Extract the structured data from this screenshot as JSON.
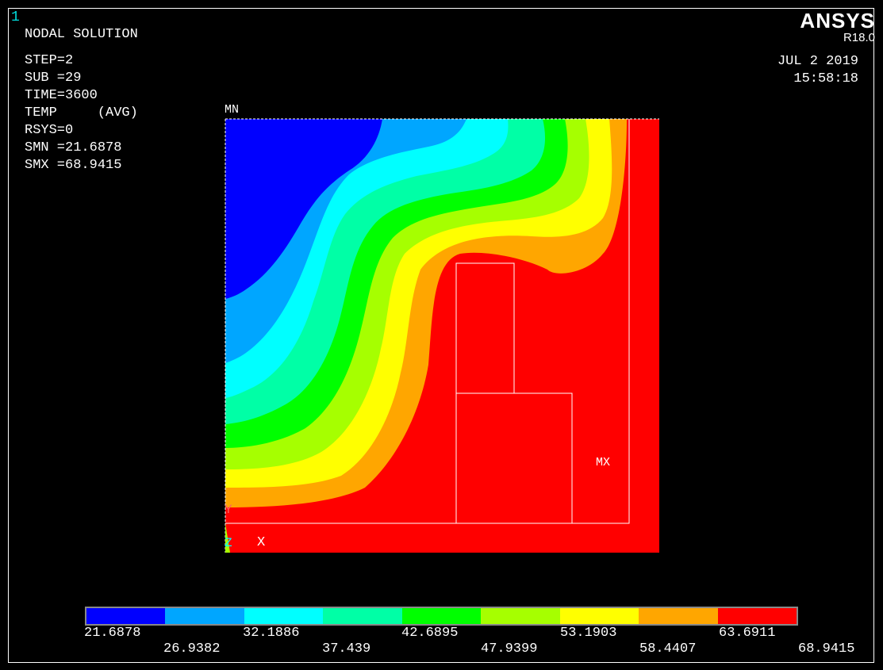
{
  "window_number": "1",
  "brand": {
    "name": "ANSYS",
    "version": "R18.0"
  },
  "solution_info": [
    "NODAL SOLUTION",
    "STEP=2",
    "SUB =29",
    "TIME=3600",
    "TEMP     (AVG)",
    "RSYS=0",
    "SMN =21.6878",
    "SMX =68.9415"
  ],
  "date": "JUL  2 2019",
  "time": "15:58:18",
  "plot_labels": {
    "mn": "MN",
    "mx": "MX",
    "axis_y": "Y",
    "axis_z": "Z",
    "axis_x": "X"
  },
  "legend": {
    "colors": [
      "#0000ff",
      "#00a6ff",
      "#00ffff",
      "#00ffa6",
      "#00ff00",
      "#a6ff00",
      "#ffff00",
      "#ffa600",
      "#ff0000"
    ],
    "upper_values": [
      "21.6878",
      "32.1886",
      "42.6895",
      "53.1903",
      "63.6911"
    ],
    "lower_values": [
      "26.9382",
      "37.439",
      "47.9399",
      "58.4407",
      "68.9415"
    ]
  }
}
